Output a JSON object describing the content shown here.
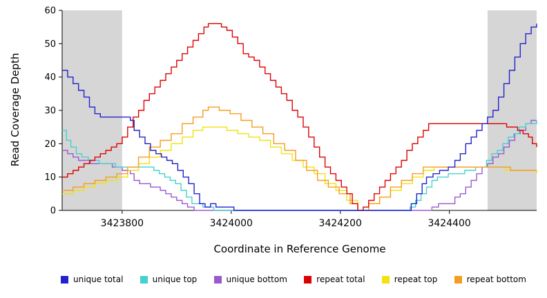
{
  "chart_data": {
    "type": "line",
    "title": "",
    "xlabel": "Coordinate in Reference Genome",
    "ylabel": "Read Coverage Depth",
    "xlim": [
      3423690,
      3424560
    ],
    "ylim": [
      0,
      60
    ],
    "x_ticks": [
      3423800,
      3424000,
      3424200,
      3424400
    ],
    "y_ticks": [
      0,
      10,
      20,
      30,
      40,
      50,
      60
    ],
    "grid": false,
    "legend_position": "bottom",
    "shade_color": "#d6d6d6",
    "shaded_regions": [
      {
        "x0": 3423690,
        "x1": 3423800
      },
      {
        "x0": 3424470,
        "x1": 3424560
      }
    ],
    "series": [
      {
        "name": "unique total",
        "color": "#2222cc",
        "z": 6,
        "points": [
          [
            3423690,
            42
          ],
          [
            3423700,
            40
          ],
          [
            3423710,
            38
          ],
          [
            3423720,
            36
          ],
          [
            3423730,
            34
          ],
          [
            3423740,
            31
          ],
          [
            3423750,
            29
          ],
          [
            3423760,
            28
          ],
          [
            3423800,
            28
          ],
          [
            3423815,
            27
          ],
          [
            3423822,
            24
          ],
          [
            3423832,
            22
          ],
          [
            3423842,
            20
          ],
          [
            3423852,
            18
          ],
          [
            3423862,
            17
          ],
          [
            3423872,
            16
          ],
          [
            3423882,
            15
          ],
          [
            3423892,
            14
          ],
          [
            3423902,
            12
          ],
          [
            3423912,
            10
          ],
          [
            3423922,
            8
          ],
          [
            3423932,
            5
          ],
          [
            3423942,
            2
          ],
          [
            3423952,
            1
          ],
          [
            3423962,
            2
          ],
          [
            3423972,
            1
          ],
          [
            3423995,
            1
          ],
          [
            3424005,
            0
          ],
          [
            3424320,
            0
          ],
          [
            3424330,
            2
          ],
          [
            3424340,
            5
          ],
          [
            3424350,
            8
          ],
          [
            3424358,
            10
          ],
          [
            3424370,
            11
          ],
          [
            3424382,
            12
          ],
          [
            3424398,
            13
          ],
          [
            3424410,
            15
          ],
          [
            3424420,
            17
          ],
          [
            3424430,
            20
          ],
          [
            3424440,
            22
          ],
          [
            3424450,
            24
          ],
          [
            3424460,
            26
          ],
          [
            3424470,
            28
          ],
          [
            3424480,
            30
          ],
          [
            3424490,
            34
          ],
          [
            3424500,
            38
          ],
          [
            3424510,
            42
          ],
          [
            3424520,
            46
          ],
          [
            3424530,
            50
          ],
          [
            3424540,
            53
          ],
          [
            3424550,
            55
          ],
          [
            3424560,
            56
          ]
        ]
      },
      {
        "name": "unique top",
        "color": "#45d1d1",
        "z": 2,
        "points": [
          [
            3423690,
            24
          ],
          [
            3423698,
            21
          ],
          [
            3423706,
            19
          ],
          [
            3423716,
            17
          ],
          [
            3423726,
            16
          ],
          [
            3423738,
            15
          ],
          [
            3423758,
            14
          ],
          [
            3423788,
            13
          ],
          [
            3423848,
            13
          ],
          [
            3423858,
            12
          ],
          [
            3423868,
            11
          ],
          [
            3423878,
            10
          ],
          [
            3423888,
            9
          ],
          [
            3423898,
            8
          ],
          [
            3423908,
            6
          ],
          [
            3423918,
            4
          ],
          [
            3423928,
            2
          ],
          [
            3423948,
            1
          ],
          [
            3423968,
            0
          ],
          [
            3424318,
            0
          ],
          [
            3424328,
            1
          ],
          [
            3424338,
            3
          ],
          [
            3424348,
            5
          ],
          [
            3424358,
            7
          ],
          [
            3424368,
            9
          ],
          [
            3424378,
            10
          ],
          [
            3424398,
            11
          ],
          [
            3424428,
            12
          ],
          [
            3424448,
            13
          ],
          [
            3424468,
            15
          ],
          [
            3424478,
            17
          ],
          [
            3424488,
            18
          ],
          [
            3424498,
            20
          ],
          [
            3424508,
            22
          ],
          [
            3424518,
            23
          ],
          [
            3424528,
            25
          ],
          [
            3424540,
            26
          ],
          [
            3424560,
            27
          ]
        ]
      },
      {
        "name": "unique bottom",
        "color": "#9b59d0",
        "z": 1,
        "points": [
          [
            3423690,
            18
          ],
          [
            3423700,
            17
          ],
          [
            3423710,
            16
          ],
          [
            3423720,
            15
          ],
          [
            3423742,
            14
          ],
          [
            3423772,
            14
          ],
          [
            3423782,
            13
          ],
          [
            3423800,
            12
          ],
          [
            3423815,
            11
          ],
          [
            3423822,
            9
          ],
          [
            3423832,
            8
          ],
          [
            3423852,
            7
          ],
          [
            3423870,
            6
          ],
          [
            3423880,
            5
          ],
          [
            3423890,
            4
          ],
          [
            3423900,
            3
          ],
          [
            3423910,
            2
          ],
          [
            3423920,
            1
          ],
          [
            3423932,
            0
          ],
          [
            3424358,
            0
          ],
          [
            3424368,
            1
          ],
          [
            3424380,
            2
          ],
          [
            3424400,
            2
          ],
          [
            3424410,
            4
          ],
          [
            3424420,
            5
          ],
          [
            3424430,
            7
          ],
          [
            3424440,
            9
          ],
          [
            3424450,
            11
          ],
          [
            3424460,
            13
          ],
          [
            3424470,
            14
          ],
          [
            3424480,
            16
          ],
          [
            3424490,
            17
          ],
          [
            3424500,
            19
          ],
          [
            3424510,
            21
          ],
          [
            3424520,
            23
          ],
          [
            3424530,
            24
          ],
          [
            3424540,
            26
          ],
          [
            3424550,
            27
          ],
          [
            3424560,
            27
          ]
        ]
      },
      {
        "name": "repeat total",
        "color": "#dd0000",
        "z": 5,
        "points": [
          [
            3423690,
            10
          ],
          [
            3423700,
            11
          ],
          [
            3423710,
            12
          ],
          [
            3423720,
            13
          ],
          [
            3423730,
            14
          ],
          [
            3423740,
            15
          ],
          [
            3423750,
            16
          ],
          [
            3423760,
            17
          ],
          [
            3423770,
            18
          ],
          [
            3423780,
            19
          ],
          [
            3423790,
            20
          ],
          [
            3423800,
            22
          ],
          [
            3423810,
            25
          ],
          [
            3423820,
            28
          ],
          [
            3423830,
            30
          ],
          [
            3423840,
            33
          ],
          [
            3423850,
            35
          ],
          [
            3423860,
            37
          ],
          [
            3423870,
            39
          ],
          [
            3423880,
            41
          ],
          [
            3423890,
            43
          ],
          [
            3423900,
            45
          ],
          [
            3423910,
            47
          ],
          [
            3423920,
            49
          ],
          [
            3423930,
            51
          ],
          [
            3423940,
            53
          ],
          [
            3423950,
            55
          ],
          [
            3423958,
            56
          ],
          [
            3423972,
            56
          ],
          [
            3423982,
            55
          ],
          [
            3423992,
            54
          ],
          [
            3424002,
            52
          ],
          [
            3424012,
            50
          ],
          [
            3424022,
            47
          ],
          [
            3424032,
            46
          ],
          [
            3424042,
            45
          ],
          [
            3424052,
            43
          ],
          [
            3424062,
            41
          ],
          [
            3424072,
            39
          ],
          [
            3424082,
            37
          ],
          [
            3424092,
            35
          ],
          [
            3424102,
            33
          ],
          [
            3424112,
            30
          ],
          [
            3424122,
            28
          ],
          [
            3424132,
            25
          ],
          [
            3424142,
            22
          ],
          [
            3424152,
            19
          ],
          [
            3424162,
            16
          ],
          [
            3424172,
            13
          ],
          [
            3424182,
            11
          ],
          [
            3424192,
            9
          ],
          [
            3424202,
            7
          ],
          [
            3424212,
            5
          ],
          [
            3424222,
            2
          ],
          [
            3424232,
            0
          ],
          [
            3424242,
            1
          ],
          [
            3424252,
            3
          ],
          [
            3424262,
            5
          ],
          [
            3424272,
            7
          ],
          [
            3424282,
            9
          ],
          [
            3424292,
            11
          ],
          [
            3424302,
            13
          ],
          [
            3424312,
            15
          ],
          [
            3424322,
            18
          ],
          [
            3424332,
            20
          ],
          [
            3424342,
            22
          ],
          [
            3424352,
            24
          ],
          [
            3424362,
            26
          ],
          [
            3424480,
            26
          ],
          [
            3424495,
            26
          ],
          [
            3424505,
            25
          ],
          [
            3424515,
            25
          ],
          [
            3424525,
            24
          ],
          [
            3424535,
            23
          ],
          [
            3424545,
            22
          ],
          [
            3424552,
            20
          ],
          [
            3424560,
            19
          ]
        ]
      },
      {
        "name": "repeat top",
        "color": "#f2e20e",
        "z": 3,
        "points": [
          [
            3423690,
            5
          ],
          [
            3423710,
            6
          ],
          [
            3423730,
            7
          ],
          [
            3423750,
            8
          ],
          [
            3423770,
            9
          ],
          [
            3423790,
            10
          ],
          [
            3423810,
            12
          ],
          [
            3423830,
            14
          ],
          [
            3423850,
            16
          ],
          [
            3423870,
            18
          ],
          [
            3423890,
            20
          ],
          [
            3423910,
            22
          ],
          [
            3423930,
            24
          ],
          [
            3423948,
            25
          ],
          [
            3423972,
            25
          ],
          [
            3423992,
            24
          ],
          [
            3424012,
            23
          ],
          [
            3424032,
            22
          ],
          [
            3424052,
            21
          ],
          [
            3424072,
            19
          ],
          [
            3424092,
            17
          ],
          [
            3424112,
            15
          ],
          [
            3424132,
            13
          ],
          [
            3424152,
            11
          ],
          [
            3424172,
            8
          ],
          [
            3424192,
            6
          ],
          [
            3424212,
            3
          ],
          [
            3424232,
            0
          ],
          [
            3424252,
            2
          ],
          [
            3424272,
            4
          ],
          [
            3424292,
            6
          ],
          [
            3424312,
            8
          ],
          [
            3424332,
            10
          ],
          [
            3424352,
            12
          ],
          [
            3424372,
            13
          ],
          [
            3424422,
            13
          ],
          [
            3424472,
            13
          ],
          [
            3424502,
            12
          ],
          [
            3424532,
            12
          ],
          [
            3424560,
            11
          ]
        ]
      },
      {
        "name": "repeat bottom",
        "color": "#f49d1e",
        "z": 4,
        "points": [
          [
            3423690,
            6
          ],
          [
            3423710,
            7
          ],
          [
            3423730,
            8
          ],
          [
            3423750,
            9
          ],
          [
            3423770,
            10
          ],
          [
            3423790,
            11
          ],
          [
            3423810,
            13
          ],
          [
            3423830,
            16
          ],
          [
            3423850,
            19
          ],
          [
            3423870,
            21
          ],
          [
            3423890,
            23
          ],
          [
            3423910,
            26
          ],
          [
            3423930,
            28
          ],
          [
            3423948,
            30
          ],
          [
            3423958,
            31
          ],
          [
            3423978,
            30
          ],
          [
            3423998,
            29
          ],
          [
            3424018,
            27
          ],
          [
            3424038,
            25
          ],
          [
            3424058,
            23
          ],
          [
            3424078,
            20
          ],
          [
            3424098,
            18
          ],
          [
            3424118,
            15
          ],
          [
            3424138,
            12
          ],
          [
            3424158,
            9
          ],
          [
            3424178,
            7
          ],
          [
            3424198,
            5
          ],
          [
            3424218,
            2
          ],
          [
            3424232,
            0
          ],
          [
            3424252,
            2
          ],
          [
            3424272,
            4
          ],
          [
            3424292,
            7
          ],
          [
            3424312,
            9
          ],
          [
            3424332,
            11
          ],
          [
            3424352,
            13
          ],
          [
            3424382,
            13
          ],
          [
            3424452,
            13
          ],
          [
            3424482,
            13
          ],
          [
            3424512,
            12
          ],
          [
            3424542,
            12
          ],
          [
            3424560,
            12
          ]
        ]
      }
    ]
  }
}
